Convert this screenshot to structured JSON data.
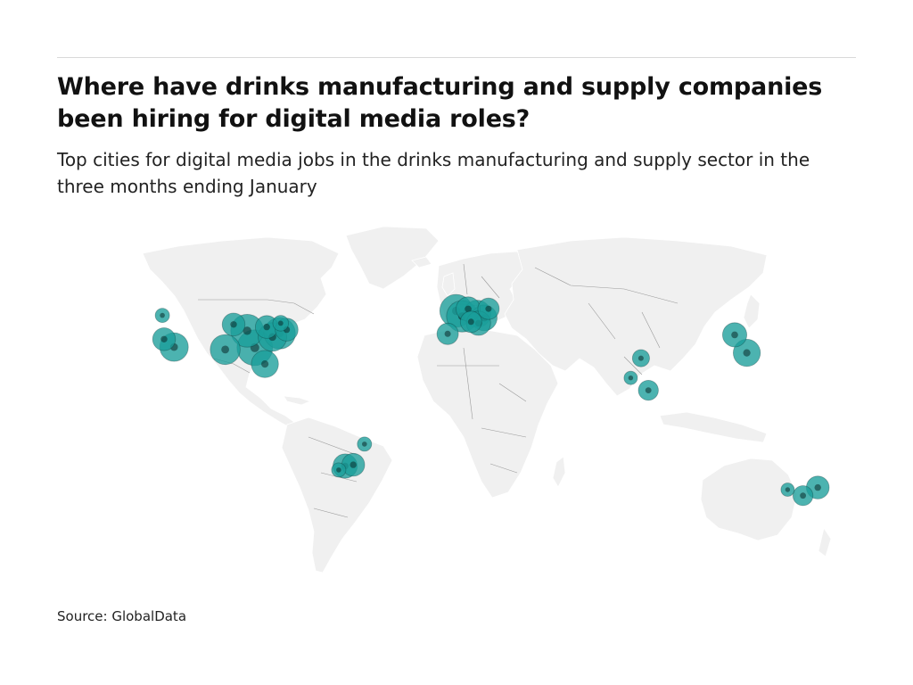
{
  "title": "Where have drinks manufacturing and supply companies been hiring for digital media roles?",
  "subtitle": "Top cities for digital media jobs in the drinks manufacturing and supply sector in the three months ending January",
  "source": "Source: GlobalData",
  "colors": {
    "land": "#f0f0f0",
    "border": "#9a9a9a",
    "bubble": "#1a9e9a",
    "bubble_dark": "#0a2a2a"
  },
  "map_data": {
    "type": "bubble-map",
    "legend": "none",
    "cities": [
      {
        "region": "north-america",
        "lon": -123.1,
        "lat": 49.3,
        "size": 0.25
      },
      {
        "region": "north-america",
        "lon": -122.4,
        "lat": 37.8,
        "size": 0.55
      },
      {
        "region": "north-america",
        "lon": -118.2,
        "lat": 34.0,
        "size": 0.75
      },
      {
        "region": "north-america",
        "lon": -96.8,
        "lat": 32.8,
        "size": 0.8
      },
      {
        "region": "north-america",
        "lon": -93.3,
        "lat": 44.9,
        "size": 0.55
      },
      {
        "region": "north-america",
        "lon": -87.6,
        "lat": 41.9,
        "size": 0.9
      },
      {
        "region": "north-america",
        "lon": -84.4,
        "lat": 33.7,
        "size": 1.0
      },
      {
        "region": "north-america",
        "lon": -80.2,
        "lat": 25.8,
        "size": 0.7
      },
      {
        "region": "north-america",
        "lon": -77.0,
        "lat": 38.9,
        "size": 0.75
      },
      {
        "region": "north-america",
        "lon": -74.0,
        "lat": 40.7,
        "size": 0.85
      },
      {
        "region": "north-america",
        "lon": -79.4,
        "lat": 43.7,
        "size": 0.55
      },
      {
        "region": "north-america",
        "lon": -71.1,
        "lat": 42.4,
        "size": 0.55
      },
      {
        "region": "north-america",
        "lon": -73.6,
        "lat": 45.5,
        "size": 0.3
      },
      {
        "region": "europe",
        "lon": -3.7,
        "lat": 40.4,
        "size": 0.5
      },
      {
        "region": "europe",
        "lon": -0.1,
        "lat": 51.5,
        "size": 0.9
      },
      {
        "region": "europe",
        "lon": 2.4,
        "lat": 48.9,
        "size": 0.85
      },
      {
        "region": "europe",
        "lon": 4.9,
        "lat": 52.4,
        "size": 0.6
      },
      {
        "region": "europe",
        "lon": 8.7,
        "lat": 50.1,
        "size": 0.7
      },
      {
        "region": "europe",
        "lon": 11.6,
        "lat": 48.1,
        "size": 0.65
      },
      {
        "region": "europe",
        "lon": 9.2,
        "lat": 45.5,
        "size": 0.6
      },
      {
        "region": "europe",
        "lon": 13.4,
        "lat": 52.5,
        "size": 0.5
      },
      {
        "region": "europe",
        "lon": 6.1,
        "lat": 46.2,
        "size": 0.5
      },
      {
        "region": "asia",
        "lon": 77.2,
        "lat": 28.6,
        "size": 0.35
      },
      {
        "region": "asia",
        "lon": 72.9,
        "lat": 19.1,
        "size": 0.22
      },
      {
        "region": "asia",
        "lon": 80.3,
        "lat": 13.1,
        "size": 0.45
      },
      {
        "region": "asia",
        "lon": 116.4,
        "lat": 39.9,
        "size": 0.6
      },
      {
        "region": "asia",
        "lon": 121.5,
        "lat": 31.2,
        "size": 0.7
      },
      {
        "region": "south-america",
        "lon": -38.5,
        "lat": -12.9,
        "size": 0.25
      },
      {
        "region": "south-america",
        "lon": -43.2,
        "lat": -22.9,
        "size": 0.55
      },
      {
        "region": "south-america",
        "lon": -46.6,
        "lat": -23.5,
        "size": 0.6
      },
      {
        "region": "south-america",
        "lon": -49.3,
        "lat": -25.4,
        "size": 0.25
      },
      {
        "region": "oceania",
        "lon": 138.6,
        "lat": -34.9,
        "size": 0.22
      },
      {
        "region": "oceania",
        "lon": 145.0,
        "lat": -37.8,
        "size": 0.45
      },
      {
        "region": "oceania",
        "lon": 151.2,
        "lat": -33.9,
        "size": 0.55
      }
    ]
  }
}
